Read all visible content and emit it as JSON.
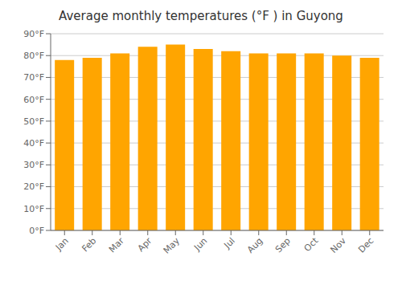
{
  "chart_data": {
    "type": "bar",
    "title": "Average monthly temperatures (°F ) in Guyong",
    "categories": [
      "Jan",
      "Feb",
      "Mar",
      "Apr",
      "May",
      "Jun",
      "Jul",
      "Aug",
      "Sep",
      "Oct",
      "Nov",
      "Dec"
    ],
    "values": [
      78,
      79,
      81,
      84,
      85,
      83,
      82,
      81,
      81,
      81,
      80,
      79
    ],
    "color": "#FFA500",
    "ylim": [
      0,
      90
    ],
    "yticks": [
      {
        "value": 0,
        "label": "0°F"
      },
      {
        "value": 10,
        "label": "10°F"
      },
      {
        "value": 20,
        "label": "20°F"
      },
      {
        "value": 30,
        "label": "30°F"
      },
      {
        "value": 40,
        "label": "40°F"
      },
      {
        "value": 50,
        "label": "50°F"
      },
      {
        "value": 60,
        "label": "60°F"
      },
      {
        "value": 70,
        "label": "70°F"
      },
      {
        "value": 80,
        "label": "80°F"
      },
      {
        "value": 90,
        "label": "90°F"
      }
    ],
    "grid": true
  }
}
